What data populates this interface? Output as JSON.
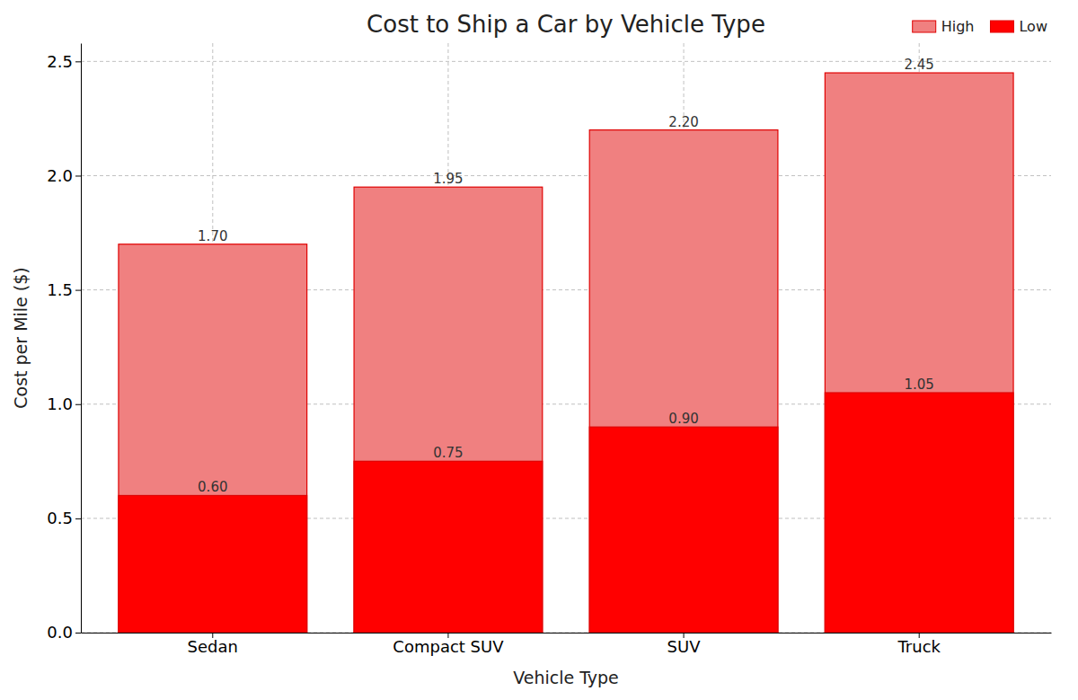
{
  "chart_data": {
    "type": "bar",
    "title": "Cost to Ship a Car by Vehicle Type",
    "x_label": "Vehicle Type",
    "y_label": "Cost per Mile ($)",
    "categories": [
      "Sedan",
      "Compact SUV",
      "SUV",
      "Truck"
    ],
    "series": [
      {
        "name": "High",
        "color": "#f08080",
        "values": [
          1.7,
          1.95,
          2.2,
          2.45
        ],
        "value_labels": [
          "1.70",
          "1.95",
          "2.20",
          "2.45"
        ]
      },
      {
        "name": "Low",
        "color": "#ff0000",
        "values": [
          0.6,
          0.75,
          0.9,
          1.05
        ],
        "value_labels": [
          "0.60",
          "0.75",
          "0.90",
          "1.05"
        ]
      }
    ],
    "ylim": [
      0,
      2.58
    ],
    "yticks": [
      {
        "value": 0,
        "label": "0.0"
      },
      {
        "value": 0.5,
        "label": "0.5"
      },
      {
        "value": 1,
        "label": "1.0"
      },
      {
        "value": 1.5,
        "label": "1.5"
      },
      {
        "value": 2,
        "label": "2.0"
      },
      {
        "value": 2.5,
        "label": "2.5"
      }
    ],
    "grid": true,
    "legend": "upper right",
    "stacked": false,
    "data_labels": true
  }
}
